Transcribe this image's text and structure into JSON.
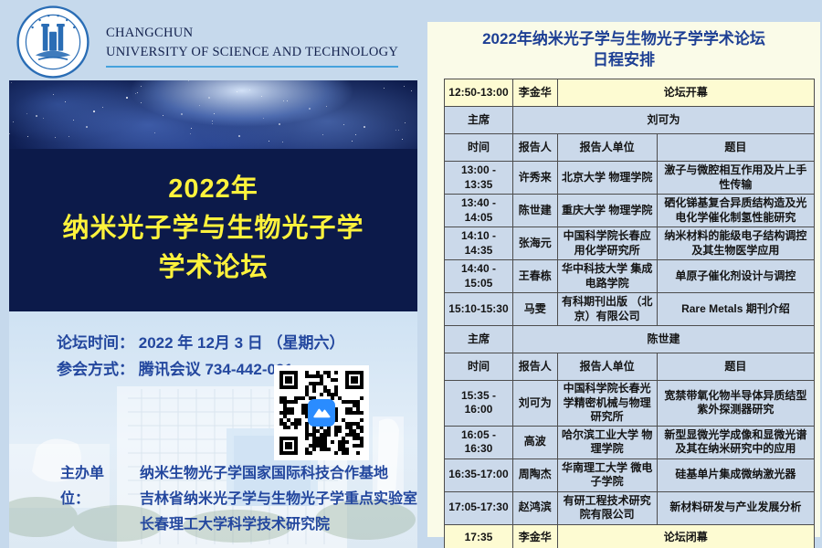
{
  "page": {
    "background": "#c6d9ec"
  },
  "header": {
    "university_name_line1": "CHANGCHUN",
    "university_name_line2": "UNIVERSITY OF SCIENCE AND TECHNOLOGY"
  },
  "poster": {
    "title_lines": [
      "2022年",
      "纳米光子学与生物光子学",
      "学术论坛"
    ],
    "info_lines": [
      {
        "label": "论坛时间：",
        "value": "2022 年 12月 3 日 （星期六）"
      },
      {
        "label": "参会方式：",
        "value": "腾讯会议 734-442-091"
      }
    ],
    "organizer_label": "主办单位：",
    "organizers": [
      "纳米生物光子学国家国际科技合作基地",
      "吉林省纳米光子学与生物光子学重点实验室",
      "长春理工大学科学技术研究院"
    ]
  },
  "schedule": {
    "title_lines": [
      "2022年纳米光子学与生物光子学学术论坛",
      "日程安排"
    ],
    "chair_label": "主席",
    "col_headers": [
      "时间",
      "报告人",
      "报告人单位",
      "题目"
    ],
    "rows": [
      {
        "type": "event",
        "time": "12:50-13:00",
        "person": "李金华",
        "event": "论坛开幕"
      },
      {
        "type": "chair",
        "chair": "刘可为"
      },
      {
        "type": "header"
      },
      {
        "type": "talk",
        "time": "13:00 - 13:35",
        "person": "许秀来",
        "affiliation": "北京大学 物理学院",
        "topic": "激子与微腔相互作用及片上手性传输"
      },
      {
        "type": "talk",
        "time": "13:40 - 14:05",
        "person": "陈世建",
        "affiliation": "重庆大学 物理学院",
        "topic": "硒化锑基复合异质结构造及光电化学催化制氢性能研究"
      },
      {
        "type": "talk",
        "time": "14:10 - 14:35",
        "person": "张海元",
        "affiliation": "中国科学院长春应用化学研究所",
        "topic": "纳米材料的能级电子结构调控及其生物医学应用"
      },
      {
        "type": "talk",
        "time": "14:40 - 15:05",
        "person": "王春栋",
        "affiliation": "华中科技大学 集成电路学院",
        "topic": "单原子催化剂设计与调控"
      },
      {
        "type": "talk",
        "time": "15:10-15:30",
        "person": "马雯",
        "affiliation": "有科期刊出版 （北京）有限公司",
        "topic": "Rare Metals 期刊介绍"
      },
      {
        "type": "chair",
        "chair": "陈世建"
      },
      {
        "type": "header"
      },
      {
        "type": "talk",
        "time": "15:35 - 16:00",
        "person": "刘可为",
        "affiliation": "中国科学院长春光学精密机械与物理研究所",
        "topic": "宽禁带氧化物半导体异质结型紫外探测器研究"
      },
      {
        "type": "talk",
        "time": "16:05 - 16:30",
        "person": "高波",
        "affiliation": "哈尔滨工业大学 物理学院",
        "topic": "新型显微光学成像和显微光谱及其在纳米研究中的应用"
      },
      {
        "type": "talk",
        "time": "16:35-17:00",
        "person": "周陶杰",
        "affiliation": "华南理工大学 微电子学院",
        "topic": "硅基单片集成微纳激光器"
      },
      {
        "type": "talk",
        "time": "17:05-17:30",
        "person": "赵鸿滨",
        "affiliation": "有研工程技术研究院有限公司",
        "topic": "新材料研发与产业发展分析"
      },
      {
        "type": "event",
        "time": "17:35",
        "person": "李金华",
        "event": "论坛闭幕"
      }
    ]
  },
  "colors": {
    "accent_blue": "#1d3f94",
    "poster_navy": "#0c1a4a",
    "title_yellow": "#fdf23c",
    "row_yellow": "#fdfbd2",
    "row_blue": "#cbd9ea",
    "panel_cream": "#fafbe8",
    "qr_logo_blue": "#2a8cff"
  }
}
